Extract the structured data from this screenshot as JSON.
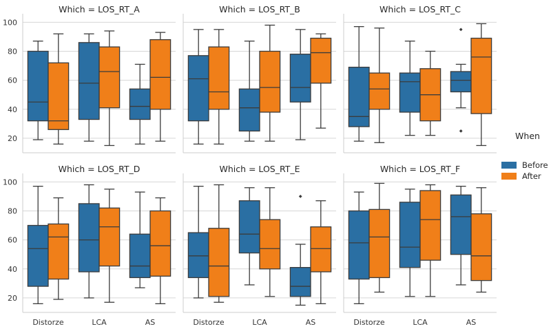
{
  "chart_data": {
    "type": "box",
    "facet_label": "Which",
    "categories": [
      "Distorze",
      "LCA",
      "AS"
    ],
    "hue_title": "When",
    "hue": [
      {
        "name": "Before",
        "color": "#2a6fa3"
      },
      {
        "name": "After",
        "color": "#f07f19"
      }
    ],
    "yticks": [
      20,
      40,
      60,
      80,
      100
    ],
    "ylim": [
      10,
      103
    ],
    "panels": [
      {
        "title": "Which = LOS_RT_A",
        "boxes": [
          {
            "category": "Distorze",
            "hue": "Before",
            "whislo": 19,
            "q1": 32,
            "med": 45,
            "q3": 80,
            "whishi": 87,
            "fliers": []
          },
          {
            "category": "Distorze",
            "hue": "After",
            "whislo": 16,
            "q1": 26,
            "med": 32,
            "q3": 72,
            "whishi": 92,
            "fliers": []
          },
          {
            "category": "LCA",
            "hue": "Before",
            "whislo": 18,
            "q1": 33,
            "med": 58,
            "q3": 86,
            "whishi": 92,
            "fliers": []
          },
          {
            "category": "LCA",
            "hue": "After",
            "whislo": 15,
            "q1": 41,
            "med": 66,
            "q3": 83,
            "whishi": 94,
            "fliers": []
          },
          {
            "category": "AS",
            "hue": "Before",
            "whislo": 16,
            "q1": 33,
            "med": 42,
            "q3": 54,
            "whishi": 71,
            "fliers": []
          },
          {
            "category": "AS",
            "hue": "After",
            "whislo": 18,
            "q1": 40,
            "med": 62,
            "q3": 88,
            "whishi": 93,
            "fliers": []
          }
        ]
      },
      {
        "title": "Which = LOS_RT_B",
        "boxes": [
          {
            "category": "Distorze",
            "hue": "Before",
            "whislo": 16,
            "q1": 32,
            "med": 61,
            "q3": 77,
            "whishi": 95,
            "fliers": []
          },
          {
            "category": "Distorze",
            "hue": "After",
            "whislo": 16,
            "q1": 40,
            "med": 52,
            "q3": 83,
            "whishi": 95,
            "fliers": []
          },
          {
            "category": "LCA",
            "hue": "Before",
            "whislo": 18,
            "q1": 25,
            "med": 41,
            "q3": 54,
            "whishi": 87,
            "fliers": []
          },
          {
            "category": "LCA",
            "hue": "After",
            "whislo": 18,
            "q1": 38,
            "med": 55,
            "q3": 80,
            "whishi": 98,
            "fliers": []
          },
          {
            "category": "AS",
            "hue": "Before",
            "whislo": 19,
            "q1": 45,
            "med": 55,
            "q3": 78,
            "whishi": 95,
            "fliers": []
          },
          {
            "category": "AS",
            "hue": "After",
            "whislo": 27,
            "q1": 58,
            "med": 79,
            "q3": 89,
            "whishi": 92,
            "fliers": []
          }
        ]
      },
      {
        "title": "Which = LOS_RT_C",
        "boxes": [
          {
            "category": "Distorze",
            "hue": "Before",
            "whislo": 18,
            "q1": 28,
            "med": 35,
            "q3": 69,
            "whishi": 97,
            "fliers": []
          },
          {
            "category": "Distorze",
            "hue": "After",
            "whislo": 17,
            "q1": 40,
            "med": 54,
            "q3": 65,
            "whishi": 96,
            "fliers": []
          },
          {
            "category": "LCA",
            "hue": "Before",
            "whislo": 22,
            "q1": 38,
            "med": 59,
            "q3": 65,
            "whishi": 87,
            "fliers": []
          },
          {
            "category": "LCA",
            "hue": "After",
            "whislo": 22,
            "q1": 32,
            "med": 50,
            "q3": 68,
            "whishi": 80,
            "fliers": []
          },
          {
            "category": "AS",
            "hue": "Before",
            "whislo": 41,
            "q1": 52,
            "med": 60,
            "q3": 66,
            "whishi": 71,
            "fliers": [
              95,
              25
            ]
          },
          {
            "category": "AS",
            "hue": "After",
            "whislo": 15,
            "q1": 37,
            "med": 76,
            "q3": 89,
            "whishi": 99,
            "fliers": []
          }
        ]
      },
      {
        "title": "Which = LOS_RT_D",
        "boxes": [
          {
            "category": "Distorze",
            "hue": "Before",
            "whislo": 16,
            "q1": 28,
            "med": 54,
            "q3": 70,
            "whishi": 97,
            "fliers": []
          },
          {
            "category": "Distorze",
            "hue": "After",
            "whislo": 19,
            "q1": 33,
            "med": 62,
            "q3": 71,
            "whishi": 89,
            "fliers": []
          },
          {
            "category": "LCA",
            "hue": "Before",
            "whislo": 20,
            "q1": 38,
            "med": 60,
            "q3": 85,
            "whishi": 98,
            "fliers": []
          },
          {
            "category": "LCA",
            "hue": "After",
            "whislo": 17,
            "q1": 42,
            "med": 69,
            "q3": 82,
            "whishi": 95,
            "fliers": []
          },
          {
            "category": "AS",
            "hue": "Before",
            "whislo": 27,
            "q1": 34,
            "med": 42,
            "q3": 64,
            "whishi": 93,
            "fliers": []
          },
          {
            "category": "AS",
            "hue": "After",
            "whislo": 16,
            "q1": 35,
            "med": 56,
            "q3": 80,
            "whishi": 89,
            "fliers": []
          }
        ]
      },
      {
        "title": "Which = LOS_RT_E",
        "boxes": [
          {
            "category": "Distorze",
            "hue": "Before",
            "whislo": 20,
            "q1": 34,
            "med": 49,
            "q3": 65,
            "whishi": 97,
            "fliers": []
          },
          {
            "category": "Distorze",
            "hue": "After",
            "whislo": 17,
            "q1": 21,
            "med": 42,
            "q3": 68,
            "whishi": 98,
            "fliers": []
          },
          {
            "category": "LCA",
            "hue": "Before",
            "whislo": 29,
            "q1": 51,
            "med": 64,
            "q3": 87,
            "whishi": 96,
            "fliers": []
          },
          {
            "category": "LCA",
            "hue": "After",
            "whislo": 21,
            "q1": 40,
            "med": 54,
            "q3": 74,
            "whishi": 96,
            "fliers": []
          },
          {
            "category": "AS",
            "hue": "Before",
            "whislo": 15,
            "q1": 21,
            "med": 28,
            "q3": 41,
            "whishi": 57,
            "fliers": [
              90
            ]
          },
          {
            "category": "AS",
            "hue": "After",
            "whislo": 16,
            "q1": 38,
            "med": 54,
            "q3": 69,
            "whishi": 87,
            "fliers": []
          }
        ]
      },
      {
        "title": "Which = LOS_RT_F",
        "boxes": [
          {
            "category": "Distorze",
            "hue": "Before",
            "whislo": 16,
            "q1": 33,
            "med": 58,
            "q3": 80,
            "whishi": 93,
            "fliers": []
          },
          {
            "category": "Distorze",
            "hue": "After",
            "whislo": 24,
            "q1": 34,
            "med": 62,
            "q3": 81,
            "whishi": 99,
            "fliers": []
          },
          {
            "category": "LCA",
            "hue": "Before",
            "whislo": 21,
            "q1": 41,
            "med": 55,
            "q3": 86,
            "whishi": 95,
            "fliers": []
          },
          {
            "category": "LCA",
            "hue": "After",
            "whislo": 21,
            "q1": 46,
            "med": 74,
            "q3": 94,
            "whishi": 98,
            "fliers": []
          },
          {
            "category": "AS",
            "hue": "Before",
            "whislo": 29,
            "q1": 50,
            "med": 76,
            "q3": 91,
            "whishi": 97,
            "fliers": []
          },
          {
            "category": "AS",
            "hue": "After",
            "whislo": 24,
            "q1": 32,
            "med": 49,
            "q3": 78,
            "whishi": 96,
            "fliers": []
          }
        ]
      }
    ]
  }
}
